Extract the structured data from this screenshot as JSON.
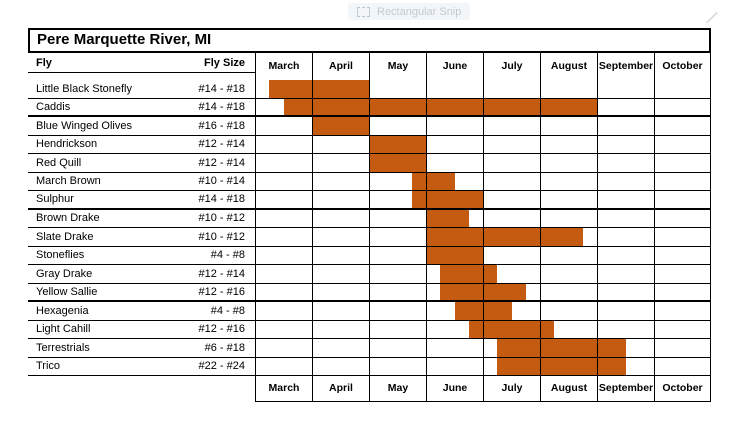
{
  "overlay": {
    "label": "Rectangular Snip"
  },
  "table": {
    "title": "Pere Marquette River, MI",
    "col_fly": "Fly",
    "col_fly_size": "Fly Size",
    "months": [
      "March",
      "April",
      "May",
      "June",
      "July",
      "August",
      "September",
      "October"
    ]
  },
  "colors": {
    "bar": "#C55A11",
    "grid": "#000000"
  },
  "chart_data": {
    "type": "gantt",
    "title": "Pere Marquette River, MI",
    "x_categories": [
      "March",
      "April",
      "May",
      "June",
      "July",
      "August",
      "September",
      "October"
    ],
    "x_unit": "month index, 0 = start of March, 1 unit = 1 month",
    "x_range": [
      0,
      8
    ],
    "grid": true,
    "rows": [
      {
        "fly": "Little Black Stonefly",
        "size": "#14 - #18",
        "start": 0.25,
        "end": 2.0,
        "group_end": false
      },
      {
        "fly": "Caddis",
        "size": "#14 - #18",
        "start": 0.5,
        "end": 6.0,
        "group_end": true
      },
      {
        "fly": "Blue Winged Olives",
        "size": "#16 - #18",
        "start": 1.0,
        "end": 2.0,
        "group_end": false
      },
      {
        "fly": "Hendrickson",
        "size": "#12 - #14",
        "start": 2.0,
        "end": 3.0,
        "group_end": false
      },
      {
        "fly": "Red Quill",
        "size": "#12 - #14",
        "start": 2.0,
        "end": 3.0,
        "group_end": false
      },
      {
        "fly": "March Brown",
        "size": "#10 - #14",
        "start": 2.75,
        "end": 3.5,
        "group_end": false
      },
      {
        "fly": "Sulphur",
        "size": "#14 - #18",
        "start": 2.75,
        "end": 4.0,
        "group_end": true
      },
      {
        "fly": "Brown Drake",
        "size": "#10 - #12",
        "start": 3.0,
        "end": 3.75,
        "group_end": false
      },
      {
        "fly": "Slate Drake",
        "size": "#10 - #12",
        "start": 3.0,
        "end": 5.75,
        "group_end": false
      },
      {
        "fly": "Stoneflies",
        "size": "#4 - #8",
        "start": 3.0,
        "end": 4.0,
        "group_end": false
      },
      {
        "fly": "Gray Drake",
        "size": "#12 - #14",
        "start": 3.25,
        "end": 4.25,
        "group_end": false
      },
      {
        "fly": "Yellow Sallie",
        "size": "#12 - #16",
        "start": 3.25,
        "end": 4.75,
        "group_end": true
      },
      {
        "fly": "Hexagenia",
        "size": "#4 - #8",
        "start": 3.5,
        "end": 4.5,
        "group_end": false
      },
      {
        "fly": "Light Cahill",
        "size": "#12 - #16",
        "start": 3.75,
        "end": 5.25,
        "group_end": false
      },
      {
        "fly": "Terrestrials",
        "size": "#6 - #18",
        "start": 4.25,
        "end": 6.5,
        "group_end": false
      },
      {
        "fly": "Trico",
        "size": "#22 - #24",
        "start": 4.25,
        "end": 6.5,
        "group_end": false
      }
    ]
  }
}
